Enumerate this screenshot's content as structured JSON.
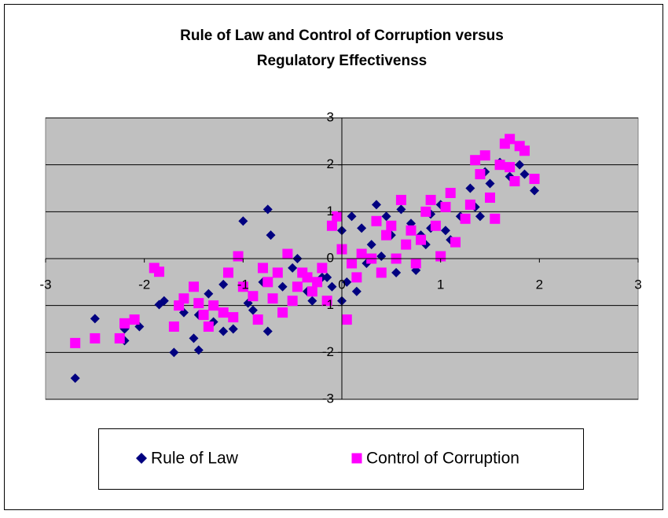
{
  "chart_data": {
    "type": "scatter",
    "title": [
      "Rule of Law and Control of Corruption versus",
      "Regulatory Effectivenss"
    ],
    "xlim": [
      -3,
      3
    ],
    "xticks": [
      -3,
      -2,
      -1,
      0,
      1,
      2,
      3
    ],
    "ylim": [
      -3,
      3
    ],
    "yticks": [
      -3,
      -2,
      -1,
      0,
      1,
      2,
      3
    ],
    "grid": true,
    "legend": "bottom",
    "series": [
      {
        "name": "Rule of Law",
        "color": "#000080",
        "marker": "diamond",
        "x": [
          -2.7,
          -2.5,
          -2.2,
          -2.2,
          -2.05,
          -1.85,
          -1.8,
          -1.7,
          -1.6,
          -1.5,
          -1.45,
          -1.45,
          -1.35,
          -1.3,
          -1.2,
          -1.2,
          -1.1,
          -1.0,
          -0.95,
          -0.9,
          -0.75,
          -0.72,
          -0.8,
          -0.75,
          -0.6,
          -0.5,
          -0.45,
          -0.3,
          -0.2,
          -0.1,
          0.0,
          0.0,
          0.1,
          0.05,
          0.15,
          0.2,
          0.3,
          0.35,
          0.4,
          0.45,
          0.5,
          0.55,
          0.6,
          0.7,
          0.75,
          0.8,
          0.85,
          0.9,
          1.0,
          1.05,
          1.1,
          1.2,
          1.3,
          1.35,
          1.4,
          1.45,
          1.5,
          1.6,
          1.7,
          1.8,
          1.85,
          1.95,
          0.25,
          -0.15,
          -0.35,
          0.9
        ],
        "y": [
          -2.55,
          -1.28,
          -1.5,
          -1.75,
          -1.45,
          -0.98,
          -0.9,
          -2.0,
          -1.15,
          -1.7,
          -1.95,
          -1.2,
          -0.75,
          -1.35,
          -1.55,
          -0.55,
          -1.5,
          0.8,
          -0.95,
          -1.1,
          1.05,
          0.5,
          -0.5,
          -1.55,
          -0.6,
          -0.2,
          0.0,
          -0.9,
          -0.4,
          -0.6,
          0.6,
          -0.9,
          0.9,
          -0.5,
          -0.7,
          0.65,
          0.3,
          1.15,
          0.05,
          0.9,
          0.5,
          -0.3,
          1.05,
          0.75,
          -0.25,
          0.5,
          0.3,
          0.95,
          1.15,
          0.6,
          0.4,
          0.9,
          1.5,
          1.1,
          0.9,
          1.85,
          1.6,
          2.05,
          1.75,
          2.0,
          1.8,
          1.45,
          -0.1,
          -0.4,
          -0.7,
          0.65
        ]
      },
      {
        "name": "Control of Corruption",
        "color": "#ff00ff",
        "marker": "square",
        "x": [
          -2.7,
          -2.5,
          -2.25,
          -2.2,
          -2.1,
          -1.9,
          -1.85,
          -1.7,
          -1.65,
          -1.6,
          -1.5,
          -1.45,
          -1.4,
          -1.35,
          -1.3,
          -1.2,
          -1.15,
          -1.1,
          -1.05,
          -1.0,
          -0.9,
          -0.85,
          -0.8,
          -0.75,
          -0.65,
          -0.6,
          -0.55,
          -0.5,
          -0.45,
          -0.4,
          -0.3,
          -0.25,
          -0.2,
          -0.15,
          -0.1,
          -0.05,
          0.0,
          0.05,
          0.1,
          0.15,
          0.2,
          0.3,
          0.35,
          0.4,
          0.45,
          0.5,
          0.55,
          0.6,
          0.65,
          0.7,
          0.75,
          0.8,
          0.85,
          0.9,
          0.95,
          1.0,
          1.05,
          1.1,
          1.15,
          1.25,
          1.3,
          1.35,
          1.4,
          1.45,
          1.5,
          1.55,
          1.6,
          1.65,
          1.7,
          1.75,
          1.8,
          1.85,
          1.95,
          1.7,
          -0.7,
          -0.35
        ],
        "y": [
          -1.8,
          -1.7,
          -1.7,
          -1.38,
          -1.3,
          -0.2,
          -0.28,
          -1.45,
          -1.0,
          -0.85,
          -0.6,
          -0.95,
          -1.2,
          -1.45,
          -1.0,
          -1.15,
          -0.3,
          -1.25,
          0.05,
          -0.6,
          -0.8,
          -1.3,
          -0.2,
          -0.5,
          -0.3,
          -1.15,
          0.1,
          -0.9,
          -0.6,
          -0.3,
          -0.7,
          -0.5,
          -0.2,
          -0.9,
          0.7,
          0.9,
          0.2,
          -1.3,
          -0.1,
          -0.4,
          0.1,
          0.0,
          0.8,
          -0.3,
          0.5,
          0.7,
          0.0,
          1.25,
          0.3,
          0.6,
          -0.1,
          0.4,
          1.0,
          1.25,
          0.7,
          0.05,
          1.1,
          1.4,
          0.35,
          0.85,
          1.15,
          2.1,
          1.8,
          2.2,
          1.3,
          0.85,
          2.0,
          2.45,
          2.55,
          1.65,
          2.4,
          2.3,
          1.7,
          1.95,
          -0.85,
          -0.4
        ]
      }
    ]
  }
}
